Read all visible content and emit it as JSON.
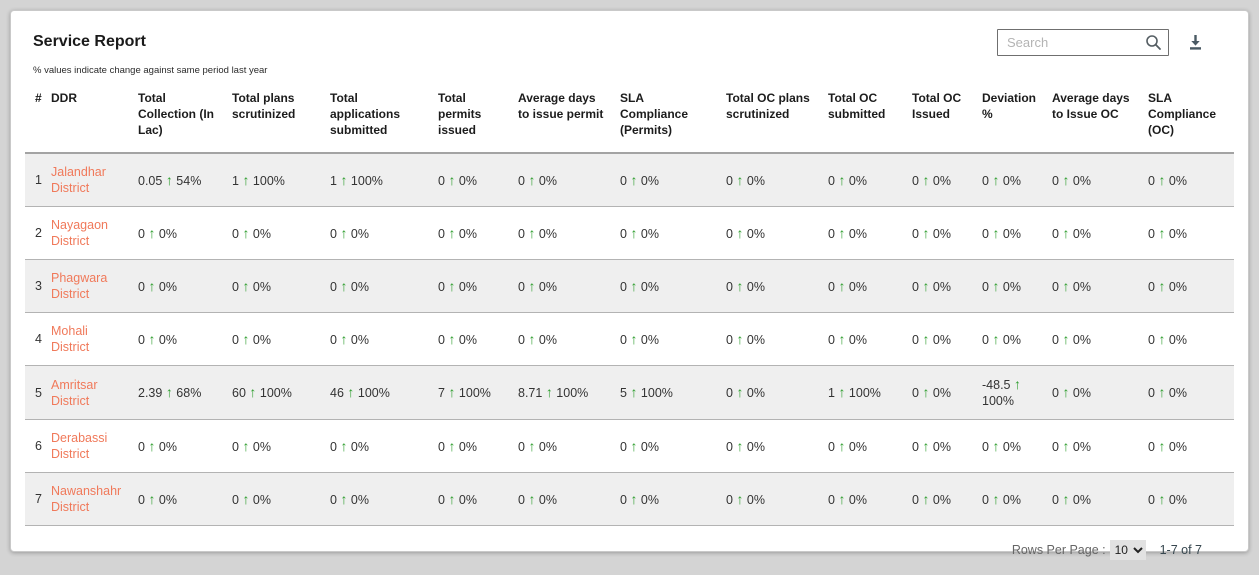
{
  "header": {
    "title": "Service Report",
    "subtitle": "% values indicate change against same period last year",
    "search_placeholder": "Search"
  },
  "colors": {
    "accent_link": "#f0795a",
    "positive_arrow": "#2f9e2f",
    "alt_row_bg": "#efefef"
  },
  "icons": {
    "search": "search-icon",
    "download": "download-icon",
    "up_arrow": "up-arrow-icon"
  },
  "table": {
    "columns": [
      "#",
      "DDR",
      "Total Collection (In Lac)",
      "Total plans scrutinized",
      "Total applications submitted",
      "Total permits issued",
      "Average days to issue permit",
      "SLA Compliance (Permits)",
      "Total OC plans scrutinized",
      "Total OC submitted",
      "Total OC Issued",
      "Deviation %",
      "Average days to Issue OC",
      "SLA Compliance (OC)"
    ],
    "rows": [
      {
        "num": "1",
        "district": "Jalandhar District",
        "metrics": [
          {
            "v": "0.05",
            "c": "54%"
          },
          {
            "v": "1",
            "c": "100%"
          },
          {
            "v": "1",
            "c": "100%"
          },
          {
            "v": "0",
            "c": "0%"
          },
          {
            "v": "0",
            "c": "0%"
          },
          {
            "v": "0",
            "c": "0%"
          },
          {
            "v": "0",
            "c": "0%"
          },
          {
            "v": "0",
            "c": "0%"
          },
          {
            "v": "0",
            "c": "0%"
          },
          {
            "v": "0",
            "c": "0%"
          },
          {
            "v": "0",
            "c": "0%"
          },
          {
            "v": "0",
            "c": "0%"
          }
        ]
      },
      {
        "num": "2",
        "district": "Nayagaon District",
        "metrics": [
          {
            "v": "0",
            "c": "0%"
          },
          {
            "v": "0",
            "c": "0%"
          },
          {
            "v": "0",
            "c": "0%"
          },
          {
            "v": "0",
            "c": "0%"
          },
          {
            "v": "0",
            "c": "0%"
          },
          {
            "v": "0",
            "c": "0%"
          },
          {
            "v": "0",
            "c": "0%"
          },
          {
            "v": "0",
            "c": "0%"
          },
          {
            "v": "0",
            "c": "0%"
          },
          {
            "v": "0",
            "c": "0%"
          },
          {
            "v": "0",
            "c": "0%"
          },
          {
            "v": "0",
            "c": "0%"
          }
        ]
      },
      {
        "num": "3",
        "district": "Phagwara District",
        "metrics": [
          {
            "v": "0",
            "c": "0%"
          },
          {
            "v": "0",
            "c": "0%"
          },
          {
            "v": "0",
            "c": "0%"
          },
          {
            "v": "0",
            "c": "0%"
          },
          {
            "v": "0",
            "c": "0%"
          },
          {
            "v": "0",
            "c": "0%"
          },
          {
            "v": "0",
            "c": "0%"
          },
          {
            "v": "0",
            "c": "0%"
          },
          {
            "v": "0",
            "c": "0%"
          },
          {
            "v": "0",
            "c": "0%"
          },
          {
            "v": "0",
            "c": "0%"
          },
          {
            "v": "0",
            "c": "0%"
          }
        ]
      },
      {
        "num": "4",
        "district": "Mohali District",
        "metrics": [
          {
            "v": "0",
            "c": "0%"
          },
          {
            "v": "0",
            "c": "0%"
          },
          {
            "v": "0",
            "c": "0%"
          },
          {
            "v": "0",
            "c": "0%"
          },
          {
            "v": "0",
            "c": "0%"
          },
          {
            "v": "0",
            "c": "0%"
          },
          {
            "v": "0",
            "c": "0%"
          },
          {
            "v": "0",
            "c": "0%"
          },
          {
            "v": "0",
            "c": "0%"
          },
          {
            "v": "0",
            "c": "0%"
          },
          {
            "v": "0",
            "c": "0%"
          },
          {
            "v": "0",
            "c": "0%"
          }
        ]
      },
      {
        "num": "5",
        "district": "Amritsar District",
        "metrics": [
          {
            "v": "2.39",
            "c": "68%"
          },
          {
            "v": "60",
            "c": "100%"
          },
          {
            "v": "46",
            "c": "100%"
          },
          {
            "v": "7",
            "c": "100%"
          },
          {
            "v": "8.71",
            "c": "100%"
          },
          {
            "v": "5",
            "c": "100%"
          },
          {
            "v": "0",
            "c": "0%"
          },
          {
            "v": "1",
            "c": "100%"
          },
          {
            "v": "0",
            "c": "0%"
          },
          {
            "v": "-48.5",
            "c": "100%"
          },
          {
            "v": "0",
            "c": "0%"
          },
          {
            "v": "0",
            "c": "0%"
          }
        ]
      },
      {
        "num": "6",
        "district": "Derabassi District",
        "metrics": [
          {
            "v": "0",
            "c": "0%"
          },
          {
            "v": "0",
            "c": "0%"
          },
          {
            "v": "0",
            "c": "0%"
          },
          {
            "v": "0",
            "c": "0%"
          },
          {
            "v": "0",
            "c": "0%"
          },
          {
            "v": "0",
            "c": "0%"
          },
          {
            "v": "0",
            "c": "0%"
          },
          {
            "v": "0",
            "c": "0%"
          },
          {
            "v": "0",
            "c": "0%"
          },
          {
            "v": "0",
            "c": "0%"
          },
          {
            "v": "0",
            "c": "0%"
          },
          {
            "v": "0",
            "c": "0%"
          }
        ]
      },
      {
        "num": "7",
        "district": "Nawanshahr District",
        "metrics": [
          {
            "v": "0",
            "c": "0%"
          },
          {
            "v": "0",
            "c": "0%"
          },
          {
            "v": "0",
            "c": "0%"
          },
          {
            "v": "0",
            "c": "0%"
          },
          {
            "v": "0",
            "c": "0%"
          },
          {
            "v": "0",
            "c": "0%"
          },
          {
            "v": "0",
            "c": "0%"
          },
          {
            "v": "0",
            "c": "0%"
          },
          {
            "v": "0",
            "c": "0%"
          },
          {
            "v": "0",
            "c": "0%"
          },
          {
            "v": "0",
            "c": "0%"
          },
          {
            "v": "0",
            "c": "0%"
          }
        ]
      }
    ]
  },
  "footer": {
    "rows_per_page_label": "Rows Per Page :",
    "rows_per_page_value": "10",
    "range_label": "1-7 of 7"
  }
}
